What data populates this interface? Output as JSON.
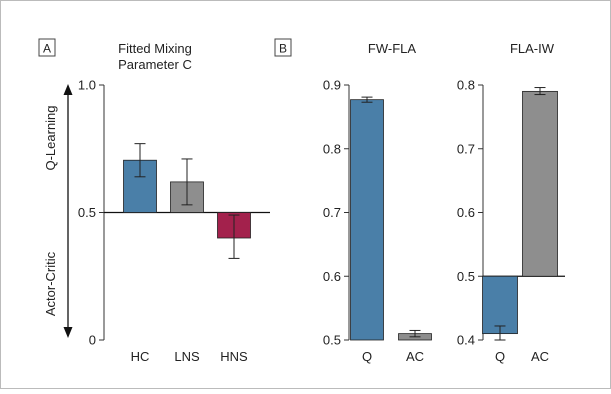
{
  "panels": [
    {
      "letter": "A"
    },
    {
      "letter": "B"
    }
  ],
  "chart_data": [
    {
      "type": "bar",
      "title": "Fitted Mixing Parameter C",
      "title_lines": [
        "Fitted Mixing",
        "Parameter C"
      ],
      "categories": [
        "HC",
        "LNS",
        "HNS"
      ],
      "values": [
        0.705,
        0.62,
        0.4
      ],
      "error_low": [
        0.64,
        0.53,
        0.32
      ],
      "error_high": [
        0.77,
        0.71,
        0.49
      ],
      "baseline": 0.5,
      "ylim": [
        0,
        1.0
      ],
      "yticks": [
        "0",
        "0.5",
        "1.0"
      ],
      "ytick_values": [
        0,
        0.5,
        1.0
      ],
      "colors": [
        "#4a7fa8",
        "#8e8e8e",
        "#a3214c"
      ],
      "ylabel_top": "Q-Learning",
      "ylabel_bottom": "Actor-Critic"
    },
    {
      "type": "bar",
      "title": "FW-FLA",
      "categories": [
        "Q",
        "AC"
      ],
      "values": [
        0.877,
        0.51
      ],
      "error_low": [
        0.873,
        0.505
      ],
      "error_high": [
        0.881,
        0.515
      ],
      "baseline": 0.5,
      "ylim": [
        0.5,
        0.9
      ],
      "yticks": [
        "0.5",
        "0.6",
        "0.7",
        "0.8",
        "0.9"
      ],
      "ytick_values": [
        0.5,
        0.6,
        0.7,
        0.8,
        0.9
      ],
      "colors": [
        "#4a7fa8",
        "#8e8e8e"
      ]
    },
    {
      "type": "bar",
      "title": "FLA-IW",
      "categories": [
        "Q",
        "AC"
      ],
      "values": [
        0.41,
        0.79
      ],
      "error_low": [
        0.4,
        0.785
      ],
      "error_high": [
        0.422,
        0.796
      ],
      "baseline": 0.5,
      "ylim": [
        0.4,
        0.8
      ],
      "yticks": [
        "0.4",
        "0.5",
        "0.6",
        "0.7",
        "0.8"
      ],
      "ytick_values": [
        0.4,
        0.5,
        0.6,
        0.7,
        0.8
      ],
      "colors": [
        "#4a7fa8",
        "#8e8e8e"
      ]
    }
  ]
}
